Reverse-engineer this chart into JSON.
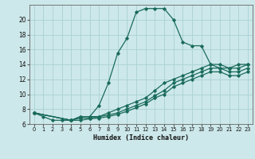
{
  "xlabel": "Humidex (Indice chaleur)",
  "bg_color": "#cde8ea",
  "line_color": "#1a6b5a",
  "grid_color": "#aed4d6",
  "xlim": [
    -0.5,
    23.5
  ],
  "ylim": [
    6,
    22
  ],
  "yticks": [
    6,
    8,
    10,
    12,
    14,
    16,
    18,
    20
  ],
  "xticks": [
    0,
    1,
    2,
    3,
    4,
    5,
    6,
    7,
    8,
    9,
    10,
    11,
    12,
    13,
    14,
    15,
    16,
    17,
    18,
    19,
    20,
    21,
    22,
    23
  ],
  "series": [
    {
      "x": [
        0,
        1,
        2,
        3,
        4,
        5,
        6,
        7,
        8,
        9,
        10,
        11,
        12,
        13,
        14,
        15,
        16,
        17,
        18,
        19,
        20,
        21,
        22,
        23
      ],
      "y": [
        7.5,
        7.0,
        6.5,
        6.5,
        6.5,
        7.0,
        7.0,
        8.5,
        11.5,
        15.5,
        17.5,
        21.0,
        21.5,
        21.5,
        21.5,
        20.0,
        17.0,
        16.5,
        16.5,
        14.0,
        13.5,
        13.5,
        14.0,
        14.0
      ]
    },
    {
      "x": [
        0,
        4,
        5,
        6,
        7,
        8,
        9,
        10,
        11,
        12,
        13,
        14,
        15,
        16,
        17,
        18,
        19,
        20,
        21,
        22,
        23
      ],
      "y": [
        7.5,
        6.5,
        7.0,
        7.0,
        7.0,
        7.5,
        8.0,
        8.5,
        9.0,
        9.5,
        10.5,
        11.5,
        12.0,
        12.5,
        13.0,
        13.5,
        14.0,
        14.0,
        13.5,
        13.5,
        14.0
      ]
    },
    {
      "x": [
        0,
        4,
        5,
        6,
        7,
        8,
        9,
        10,
        11,
        12,
        13,
        14,
        15,
        16,
        17,
        18,
        19,
        20,
        21,
        22,
        23
      ],
      "y": [
        7.5,
        6.5,
        6.8,
        6.8,
        7.0,
        7.2,
        7.5,
        8.0,
        8.5,
        9.0,
        9.8,
        10.5,
        11.5,
        12.0,
        12.5,
        13.0,
        13.5,
        13.5,
        13.0,
        13.0,
        13.5
      ]
    },
    {
      "x": [
        0,
        4,
        5,
        6,
        7,
        8,
        9,
        10,
        11,
        12,
        13,
        14,
        15,
        16,
        17,
        18,
        19,
        20,
        21,
        22,
        23
      ],
      "y": [
        7.5,
        6.5,
        6.5,
        6.7,
        6.8,
        7.0,
        7.3,
        7.7,
        8.2,
        8.7,
        9.5,
        10.0,
        11.0,
        11.5,
        12.0,
        12.5,
        13.0,
        13.0,
        12.5,
        12.5,
        13.0
      ]
    }
  ]
}
